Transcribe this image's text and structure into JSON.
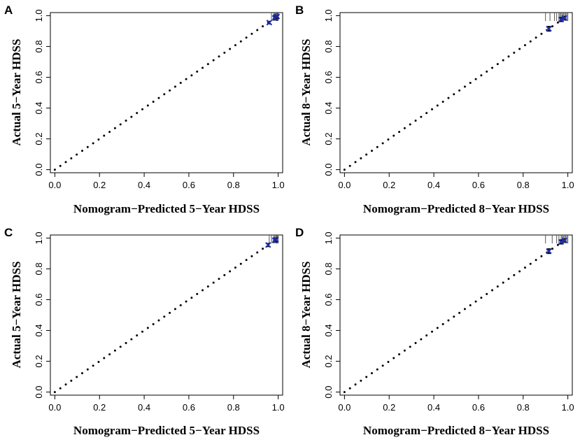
{
  "chart_data": [
    {
      "type": "scatter",
      "panel": "A",
      "xlabel": "Nomogram−Predicted  5−Year  HDSS",
      "ylabel": "Actual 5−Year HDSS",
      "xlim": [
        -0.02,
        1.02
      ],
      "ylim": [
        -0.02,
        1.02
      ],
      "ticks": [
        "0.0",
        "0.2",
        "0.4",
        "0.6",
        "0.8",
        "1.0"
      ],
      "reference_line": "dotted diagonal y = x",
      "points": [
        {
          "x": 0.96,
          "y": 0.955,
          "lo": 0.947,
          "hi": 0.963
        },
        {
          "x": 0.985,
          "y": 0.985,
          "lo": 0.975,
          "hi": 0.995
        },
        {
          "x": 0.99,
          "y": 0.992,
          "lo": 0.982,
          "hi": 1.0
        },
        {
          "x": 0.995,
          "y": 0.995,
          "lo": 0.986,
          "hi": 1.0
        }
      ],
      "rug": [
        0.97,
        0.98,
        0.985,
        0.99,
        0.993,
        0.996,
        0.998,
        1.0
      ],
      "point_color": "#1f2fa8"
    },
    {
      "type": "scatter",
      "panel": "B",
      "xlabel": "Nomogram−Predicted  8−Year  HDSS",
      "ylabel": "Actual 8−Year HDSS",
      "xlim": [
        -0.02,
        1.02
      ],
      "ylim": [
        -0.02,
        1.02
      ],
      "ticks": [
        "0.0",
        "0.2",
        "0.4",
        "0.6",
        "0.8",
        "1.0"
      ],
      "reference_line": "dotted diagonal y = x",
      "points": [
        {
          "x": 0.915,
          "y": 0.915,
          "lo": 0.9,
          "hi": 0.93
        },
        {
          "x": 0.97,
          "y": 0.975,
          "lo": 0.962,
          "hi": 0.988
        },
        {
          "x": 0.985,
          "y": 0.985,
          "lo": 0.975,
          "hi": 0.995
        }
      ],
      "rug": [
        0.9,
        0.92,
        0.94,
        0.95,
        0.96,
        0.965,
        0.97,
        0.975,
        0.98,
        0.985,
        0.99,
        0.995,
        1.0
      ],
      "point_color": "#1f2fa8"
    },
    {
      "type": "scatter",
      "panel": "C",
      "xlabel": "Nomogram−Predicted  5−Year  HDSS",
      "ylabel": "Actual 5−Year HDSS",
      "xlim": [
        -0.02,
        1.02
      ],
      "ylim": [
        -0.02,
        1.02
      ],
      "ticks": [
        "0.0",
        "0.2",
        "0.4",
        "0.6",
        "0.8",
        "1.0"
      ],
      "reference_line": "dotted diagonal y = x",
      "points": [
        {
          "x": 0.955,
          "y": 0.955,
          "lo": 0.945,
          "hi": 0.965
        },
        {
          "x": 0.985,
          "y": 0.985,
          "lo": 0.975,
          "hi": 0.995
        },
        {
          "x": 0.99,
          "y": 0.99,
          "lo": 0.98,
          "hi": 1.0
        }
      ],
      "rug": [
        0.96,
        0.97,
        0.98,
        0.985,
        0.99,
        0.993,
        0.996,
        1.0
      ],
      "point_color": "#1f2fa8"
    },
    {
      "type": "scatter",
      "panel": "D",
      "xlabel": "Nomogram−Predicted  8−Year  HDSS",
      "ylabel": "Actual 8−Year HDSS",
      "xlim": [
        -0.02,
        1.02
      ],
      "ylim": [
        -0.02,
        1.02
      ],
      "ticks": [
        "0.0",
        "0.2",
        "0.4",
        "0.6",
        "0.8",
        "1.0"
      ],
      "reference_line": "dotted diagonal y = x",
      "points": [
        {
          "x": 0.915,
          "y": 0.915,
          "lo": 0.9,
          "hi": 0.93
        },
        {
          "x": 0.97,
          "y": 0.975,
          "lo": 0.962,
          "hi": 0.988
        },
        {
          "x": 0.985,
          "y": 0.985,
          "lo": 0.975,
          "hi": 0.995
        }
      ],
      "rug": [
        0.9,
        0.93,
        0.95,
        0.96,
        0.97,
        0.975,
        0.98,
        0.985,
        0.99,
        0.995,
        1.0
      ],
      "point_color": "#1f2fa8"
    }
  ]
}
